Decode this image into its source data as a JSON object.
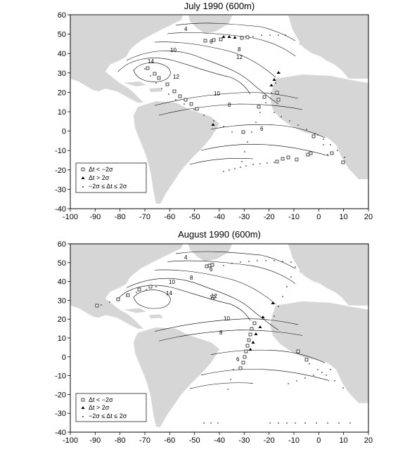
{
  "panels": [
    {
      "title": "July 1990 (600m)",
      "contour_labels": [
        "4",
        "6",
        "8",
        "10",
        "12",
        "14",
        "12",
        "10",
        "8",
        "6"
      ],
      "legend": [
        "Δt < −2σ",
        "Δt > 2σ",
        "−2σ ≤ Δt ≤ 2σ"
      ]
    },
    {
      "title": "August 1990 (600m)",
      "contour_labels": [
        "4",
        "6",
        "8",
        "10",
        "12",
        "14",
        "12",
        "10",
        "8",
        "6"
      ],
      "legend": [
        "Δt < −2σ",
        "Δt > 2σ",
        "−2σ ≤ Δt ≤ 2σ"
      ]
    }
  ],
  "axes": {
    "x_ticks": [
      "-100",
      "-90",
      "-80",
      "-70",
      "-60",
      "-50",
      "-40",
      "-30",
      "-20",
      "-10",
      "0",
      "10",
      "20"
    ],
    "y_ticks": [
      "60",
      "50",
      "40",
      "30",
      "20",
      "10",
      "0",
      "-10",
      "-20",
      "-30",
      "-40"
    ],
    "x_range": [
      -100,
      20
    ],
    "y_range": [
      -40,
      60
    ]
  },
  "colors": {
    "land": "#d6d6d6",
    "ocean": "#ffffff",
    "contour": "#000000",
    "marker": "#000000"
  }
}
